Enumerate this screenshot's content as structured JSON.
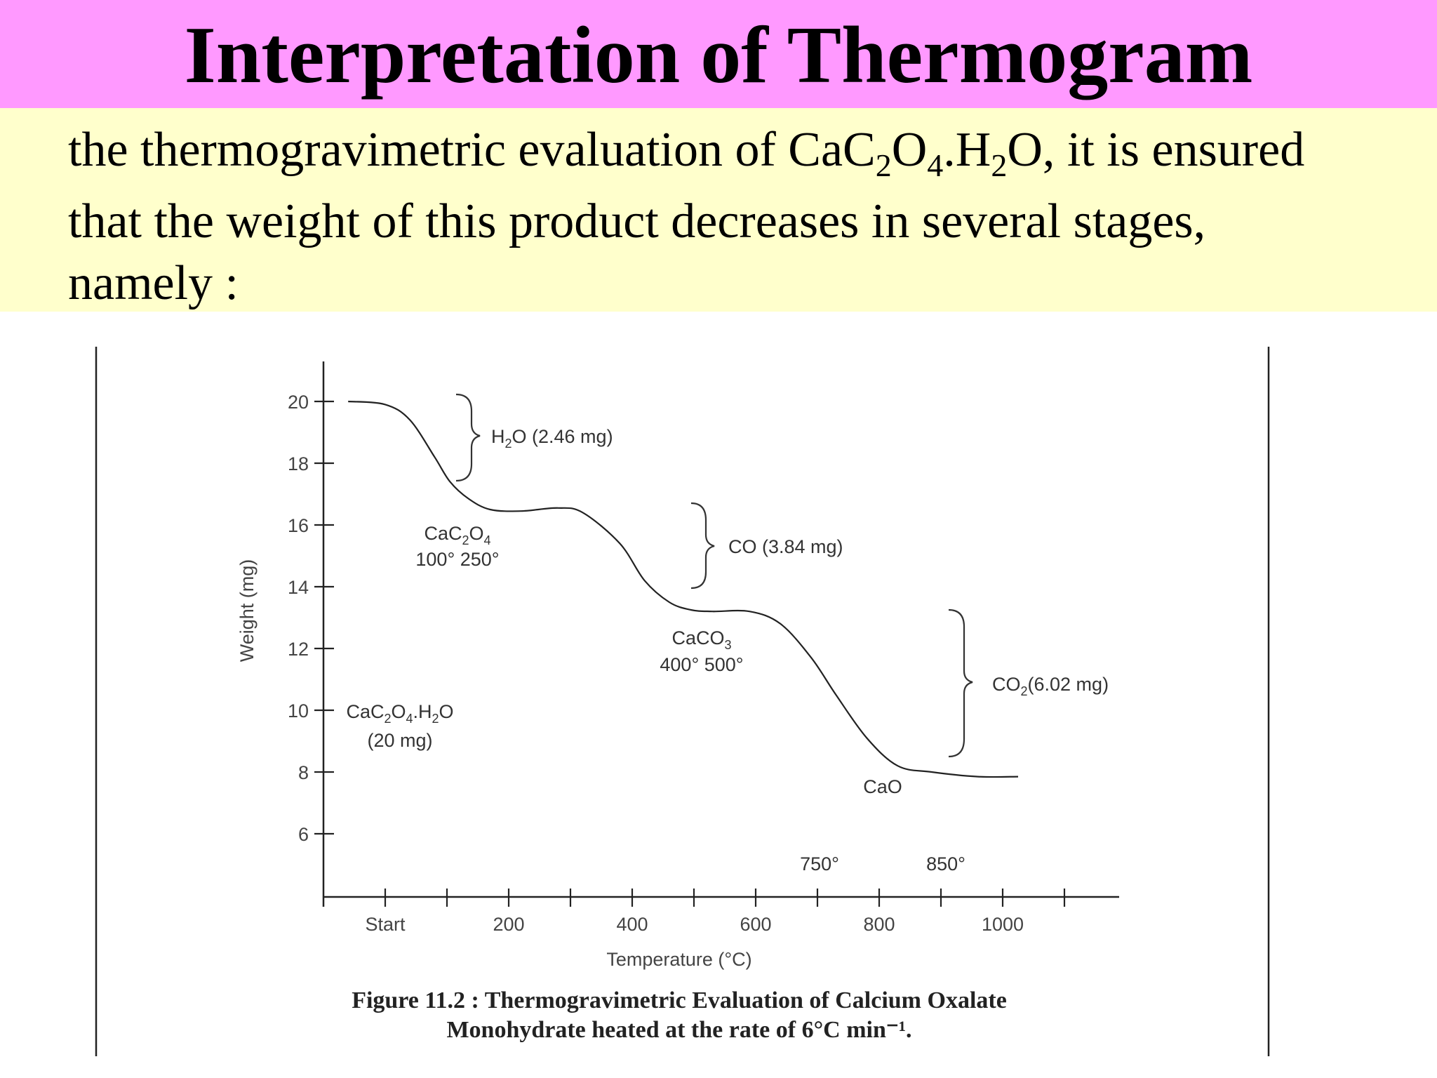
{
  "slide": {
    "title": "Interpretation of Thermogram",
    "intro": {
      "line1_before": "the thermogravimetric evaluation of ",
      "formula_ca": "CaC",
      "formula_sub1": "2",
      "formula_o": "O",
      "formula_sub2": "4",
      "formula_h": ".H",
      "formula_sub3": "2",
      "line1_after": "O, it is ensured",
      "line2": "that the weight of this product decreases in several stages,",
      "line3": "namely :"
    },
    "colors": {
      "title_band": "#ff99ff",
      "text_band": "#ffffcc",
      "curve": "#222222"
    }
  },
  "chart_data": {
    "type": "line",
    "title": "",
    "caption_line1": "Figure 11.2 : Thermogravimetric Evaluation of Calcium Oxalate",
    "caption_line2": "Monohydrate heated at the rate of 6°C min⁻¹.",
    "xlabel": "Temperature (°C)",
    "ylabel": "Weight (mg)",
    "xlim": [
      0,
      1150
    ],
    "ylim": [
      4,
      21.5
    ],
    "x_ticks": [
      {
        "value": 100,
        "label": "Start"
      },
      {
        "value": 200,
        "label": ""
      },
      {
        "value": 300,
        "label": "200"
      },
      {
        "value": 400,
        "label": ""
      },
      {
        "value": 500,
        "label": "400"
      },
      {
        "value": 600,
        "label": ""
      },
      {
        "value": 700,
        "label": "600"
      },
      {
        "value": 800,
        "label": ""
      },
      {
        "value": 900,
        "label": "800"
      },
      {
        "value": 1000,
        "label": ""
      },
      {
        "value": 1100,
        "label": "1000"
      },
      {
        "value": 1200,
        "label": ""
      }
    ],
    "y_ticks": [
      6,
      8,
      10,
      12,
      14,
      16,
      18,
      20
    ],
    "series": [
      {
        "x": [
          40,
          100,
          140,
          180,
          205,
          235,
          270,
          320,
          380,
          420,
          480,
          520,
          560,
          595,
          630,
          690,
          740,
          790,
          830,
          880,
          930,
          985,
          1060,
          1125
        ],
        "y": [
          20.0,
          19.9,
          19.4,
          18.2,
          17.4,
          16.85,
          16.5,
          16.45,
          16.55,
          16.4,
          15.4,
          14.2,
          13.5,
          13.25,
          13.2,
          13.2,
          12.8,
          11.7,
          10.5,
          9.1,
          8.2,
          8.0,
          7.85,
          7.85
        ]
      }
    ],
    "annotations": {
      "h2o": {
        "formula": "H",
        "sub": "2",
        "rest": "O (2.46 mg)"
      },
      "co": {
        "text": "CO (3.84 mg)"
      },
      "co2": {
        "formula": "CO",
        "sub": "2",
        "rest": "(6.02 mg)"
      },
      "cac2o4": {
        "a": "CaC",
        "s1": "2",
        "b": "O",
        "s2": "4",
        "temps": "100° 250°"
      },
      "caco3": {
        "a": "CaCO",
        "s1": "3",
        "temps": "400° 500°"
      },
      "monohydrate": {
        "a": "CaC",
        "s1": "2",
        "b": "O",
        "s2": "4",
        "c": ".H",
        "s3": "2",
        "d": "O",
        "mass": "(20 mg)"
      },
      "cao": {
        "text": "CaO"
      },
      "t750": {
        "text": "750°"
      },
      "t850": {
        "text": "850°"
      }
    }
  }
}
